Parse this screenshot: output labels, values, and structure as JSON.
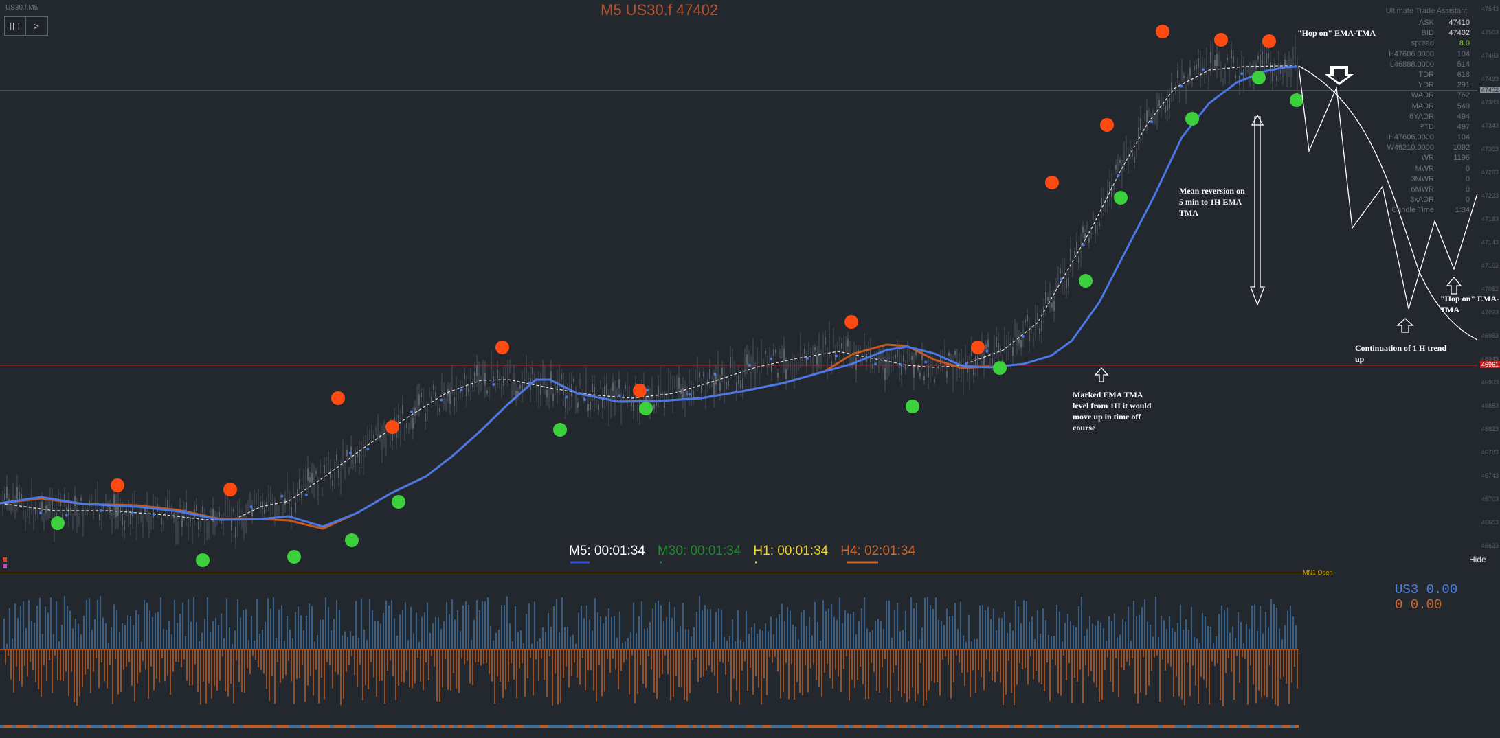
{
  "chart": {
    "symbol_label": "US30.f,M5",
    "title": "M5 US30.f 47402",
    "toolbar": {
      "menu_label": "||||",
      "next_label": ">"
    }
  },
  "trade_panel": {
    "title": "Ultimate Trade Assistant",
    "rows": [
      {
        "label": "ASK",
        "value": "47410"
      },
      {
        "label": "BID",
        "value": "47402"
      },
      {
        "label": "spread",
        "value": "8.0"
      },
      {
        "label": "H47606.0000",
        "value": "104"
      },
      {
        "label": "L46888.0000",
        "value": "514"
      },
      {
        "label": "TDR",
        "value": "618"
      },
      {
        "label": "YDR",
        "value": "291"
      },
      {
        "label": "WADR",
        "value": "762"
      },
      {
        "label": "MADR",
        "value": "549"
      },
      {
        "label": "6YADR",
        "value": "494"
      },
      {
        "label": "PTD",
        "value": "497"
      },
      {
        "label": "H47606.0000",
        "value": "104"
      },
      {
        "label": "W46210.0000",
        "value": "1092"
      },
      {
        "label": "WR",
        "value": "1196"
      },
      {
        "label": "MWR",
        "value": "0"
      },
      {
        "label": "3MWR",
        "value": "0"
      },
      {
        "label": "6MWR",
        "value": "0"
      },
      {
        "label": "3xADR",
        "value": "0"
      },
      {
        "label": "Candle Time",
        "value": "1:34"
      }
    ]
  },
  "timers": {
    "m5": "M5: 00:01:34",
    "m30": "M30: 00:01:34",
    "h1": "H1: 00:01:34",
    "h4": "H4: 02:01:34",
    "colors": {
      "m5": "#ffffff",
      "m30": "#1f8a2c",
      "h1": "#f0d020",
      "h4": "#d0642a"
    }
  },
  "hide_label": "Hide",
  "mn1_label": "MN1 Open",
  "annotations": {
    "hop_on_top": "\"Hop on\" EMA-TMA",
    "mean_reversion": [
      "Mean reversion on",
      "5 min to 1H EMA",
      "TMA"
    ],
    "marked_ema": [
      "Marked EMA TMA",
      "level from 1H it would",
      "move up in time off",
      "course"
    ],
    "hop_on_right": [
      "\"Hop on\" EMA-",
      "TMA"
    ],
    "continuation": [
      "Continuation of 1 H trend",
      "up"
    ]
  },
  "price_axis": {
    "labels": [
      "47543",
      "47503",
      "47463",
      "47423",
      "47383",
      "47343",
      "47303",
      "47263",
      "47223",
      "47183",
      "47143",
      "47102",
      "47062",
      "47023",
      "46983",
      "46943",
      "46903",
      "46863",
      "46823",
      "46783",
      "46743",
      "46703",
      "46663",
      "46623"
    ],
    "bid_tag": "47402",
    "red_level_tag": "46961"
  },
  "indicator": {
    "legend_line1": "US3   0.00",
    "legend_line2": "0   0.00"
  },
  "colors": {
    "background": "#23272e",
    "price_blue": "#4a78e6",
    "ema_orange": "#c45a1e",
    "sell_dot": "#ff4a12",
    "buy_dot": "#3cd13c",
    "red_level": "#c81e1e"
  }
}
